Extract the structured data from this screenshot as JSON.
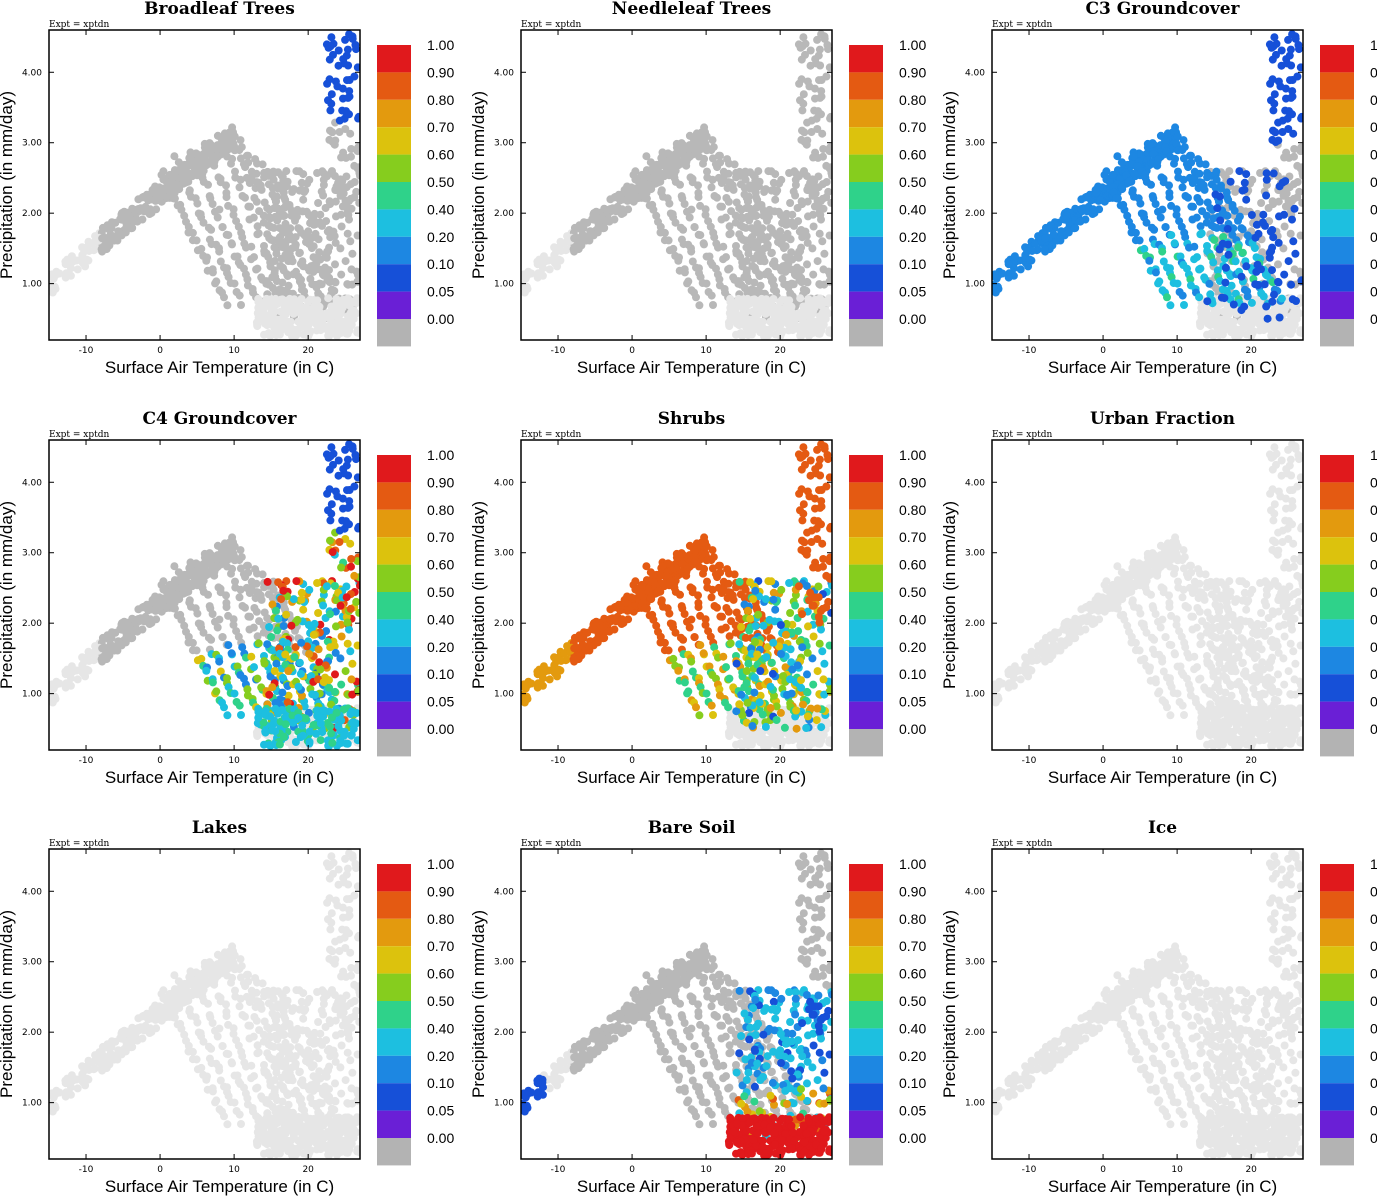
{
  "figure": {
    "expt_label": "Expt = xptdn",
    "xlabel": "Surface Air Temperature (in C)",
    "ylabel": "Precipitation (in mm/day)"
  },
  "chart_data": {
    "type": "scatter",
    "xlim": [
      -15,
      27
    ],
    "ylim": [
      0.2,
      4.6
    ],
    "x_ticks": [
      -10,
      0,
      10,
      20
    ],
    "x_tick_labels": [
      "-10",
      "0",
      "10",
      "20"
    ],
    "y_ticks": [
      1.0,
      2.0,
      3.0,
      4.0
    ],
    "y_tick_labels": [
      "1.00",
      "2.00",
      "3.00",
      "4.00"
    ],
    "colorbar": {
      "levels": [
        0.0,
        0.05,
        0.1,
        0.2,
        0.4,
        0.5,
        0.6,
        0.7,
        0.8,
        0.9,
        1.0
      ],
      "labels": [
        "1.00",
        "0.90",
        "0.80",
        "0.70",
        "0.60",
        "0.50",
        "0.40",
        "0.20",
        "0.10",
        "0.05",
        "0.00"
      ],
      "colors": [
        "#e0191c",
        "#e45a12",
        "#e39a0e",
        "#dcc20d",
        "#86cd1e",
        "#2fd28a",
        "#1dbfe0",
        "#1d87e2",
        "#1650d8",
        "#6a1fd6",
        "#b3b3b3"
      ]
    },
    "zero_colors": {
      "active": "#b8b8b8",
      "inactive": "#e6e6e6"
    },
    "panels": [
      {
        "title": "Broadleaf Trees",
        "dominant_value": 0.0,
        "notes": "trees only at the hottest wettest tail (~0.05)"
      },
      {
        "title": "Needleleaf Trees",
        "dominant_value": 0.0,
        "notes": "no coverage above 0.00"
      },
      {
        "title": "C3 Groundcover",
        "dominant_value": 0.1,
        "notes": "0.10-0.40 across the cool-to-mid range"
      },
      {
        "title": "C4 Groundcover",
        "dominant_value": 0.4,
        "notes": "0.10-1.00 at warm temperatures, peak near 25 C"
      },
      {
        "title": "Shrubs",
        "dominant_value": 0.8,
        "notes": "0.80 across the main body, 0.70 at cold end"
      },
      {
        "title": "Urban Fraction",
        "dominant_value": 0.0,
        "notes": "all points 0.00"
      },
      {
        "title": "Lakes",
        "dominant_value": 0.0,
        "notes": "all points 0.00"
      },
      {
        "title": "Bare Soil",
        "dominant_value": 1.0,
        "notes": "1.00 at warm dry points, decreasing at wetter ones"
      },
      {
        "title": "Ice",
        "dominant_value": 0.0,
        "notes": "all points 0.00"
      }
    ]
  }
}
